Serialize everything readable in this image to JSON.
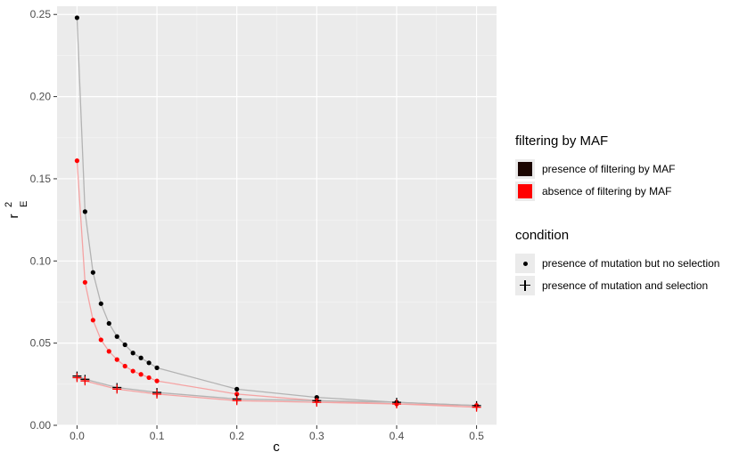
{
  "chart_data": {
    "type": "line",
    "xlabel": "c",
    "ylabel": "r",
    "ylabel_sup": "2",
    "ylabel_sub": "E",
    "xlim": [
      -0.025,
      0.525
    ],
    "ylim": [
      0,
      0.255
    ],
    "x_ticks": [
      "0.0",
      "0.1",
      "0.2",
      "0.3",
      "0.4",
      "0.5"
    ],
    "x_tick_values": [
      0,
      0.1,
      0.2,
      0.3,
      0.4,
      0.5
    ],
    "y_ticks": [
      "0.00",
      "0.05",
      "0.10",
      "0.15",
      "0.20",
      "0.25"
    ],
    "y_tick_values": [
      0,
      0.05,
      0.1,
      0.15,
      0.2,
      0.25
    ],
    "grid": true,
    "legend_position": "right",
    "series": [
      {
        "color_legend": "presence of filtering by MAF",
        "shape_legend": "presence of mutation but no selection",
        "color": "#000000",
        "line_color": "#b3b3b3",
        "marker": "dot",
        "x": [
          0,
          0.01,
          0.02,
          0.03,
          0.04,
          0.05,
          0.06,
          0.07,
          0.08,
          0.09,
          0.1,
          0.2,
          0.3,
          0.4,
          0.5
        ],
        "y": [
          0.248,
          0.13,
          0.093,
          0.074,
          0.062,
          0.054,
          0.049,
          0.044,
          0.041,
          0.038,
          0.035,
          0.022,
          0.017,
          0.014,
          0.012
        ]
      },
      {
        "color_legend": "absence of filtering by MAF",
        "shape_legend": "presence of mutation but no selection",
        "color": "#ff0000",
        "line_color": "#f5a3a3",
        "marker": "dot",
        "x": [
          0,
          0.01,
          0.02,
          0.03,
          0.04,
          0.05,
          0.06,
          0.07,
          0.08,
          0.09,
          0.1,
          0.2,
          0.3,
          0.4,
          0.5
        ],
        "y": [
          0.161,
          0.087,
          0.064,
          0.052,
          0.045,
          0.04,
          0.036,
          0.033,
          0.031,
          0.029,
          0.027,
          0.019,
          0.015,
          0.013,
          0.012
        ]
      },
      {
        "color_legend": "presence of filtering by MAF",
        "shape_legend": "presence of mutation and selection",
        "color": "#000000",
        "line_color": "#b3b3b3",
        "marker": "plus",
        "x": [
          0,
          0.01,
          0.05,
          0.1,
          0.2,
          0.3,
          0.4,
          0.5
        ],
        "y": [
          0.03,
          0.028,
          0.023,
          0.02,
          0.016,
          0.015,
          0.014,
          0.012
        ]
      },
      {
        "color_legend": "absence of filtering by MAF",
        "shape_legend": "presence of mutation and selection",
        "color": "#ff0000",
        "line_color": "#f5a3a3",
        "marker": "plus",
        "x": [
          0,
          0.01,
          0.05,
          0.1,
          0.2,
          0.3,
          0.4,
          0.5
        ],
        "y": [
          0.029,
          0.027,
          0.022,
          0.019,
          0.015,
          0.014,
          0.013,
          0.011
        ]
      }
    ]
  },
  "legend": {
    "color_title": "filtering by MAF",
    "color_items": [
      {
        "label": "presence of filtering by MAF",
        "color": "#1a0500"
      },
      {
        "label": "absence of filtering by MAF",
        "color": "#ff0000"
      }
    ],
    "shape_title": "condition",
    "shape_items": [
      {
        "label": "presence of mutation but no selection",
        "icon": "dot"
      },
      {
        "label": "presence of mutation and selection",
        "icon": "plus"
      }
    ]
  }
}
